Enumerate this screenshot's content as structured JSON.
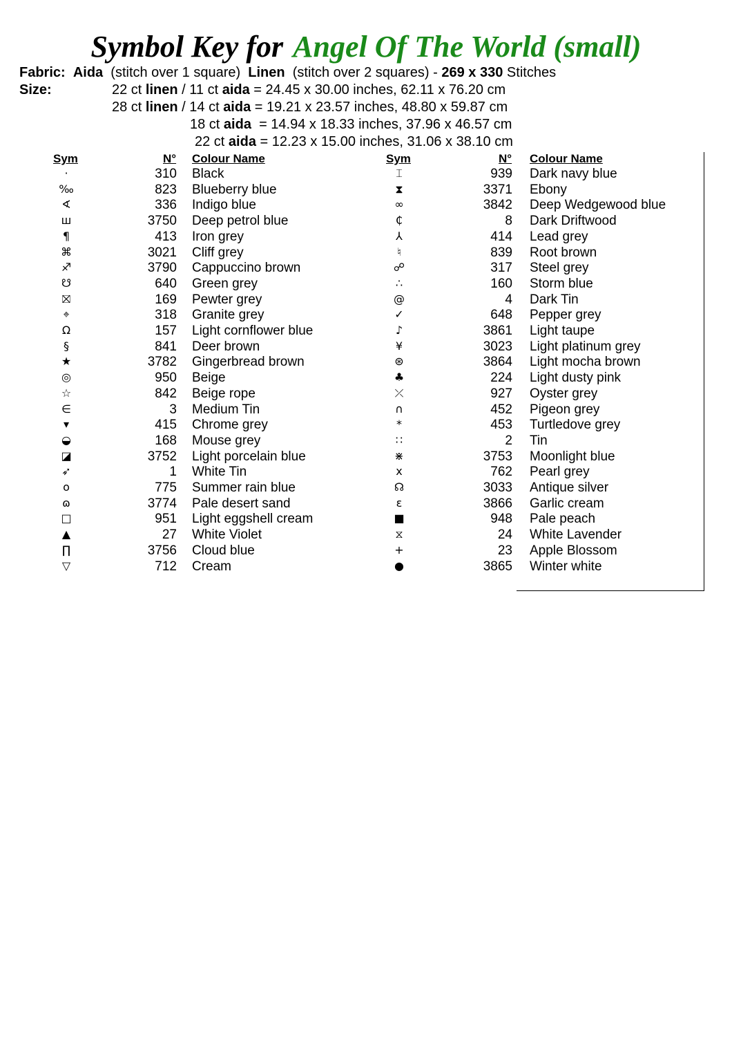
{
  "title": {
    "prefix": "Symbol Key for",
    "pattern": "Angel Of The World (small)",
    "accent": "#1a8a1a"
  },
  "fabric": {
    "label": "Fabric:",
    "aida": "Aida",
    "aida_note": "(stitch over 1 square)",
    "linen": "Linen",
    "linen_note": "(stitch over 2 squares) -",
    "stitches": "269 x 330",
    "stitches_unit": "Stitches"
  },
  "size": {
    "label": "Size:",
    "lines": [
      {
        "pre": "22 ct ",
        "b1": "linen",
        "mid": " / 11 ct ",
        "b2": "aida",
        "post": " = 24.45 x 30.00 inches, 62.11 x 76.20 cm"
      },
      {
        "pre": "28 ct ",
        "b1": "linen",
        "mid": " / 14 ct ",
        "b2": "aida",
        "post": " = 19.21 x 23.57 inches, 48.80 x 59.87 cm"
      },
      {
        "pre": "18 ct ",
        "b1": "",
        "mid": "",
        "b2": "aida",
        "post": "  = 14.94 x 18.33 inches, 37.96 x 46.57 cm"
      },
      {
        "pre": "22 ct ",
        "b1": "",
        "mid": "",
        "b2": "aida",
        "post": " = 12.23 x 15.00 inches, 31.06 x 38.10 cm"
      }
    ]
  },
  "headers": {
    "sym": "Sym",
    "num": "N°",
    "name": "Colour Name"
  },
  "left": [
    [
      "·",
      "310",
      "Black"
    ],
    [
      "‰",
      "823",
      "Blueberry blue"
    ],
    [
      "∢",
      "336",
      "Indigo blue"
    ],
    [
      "ш",
      "3750",
      "Deep petrol blue"
    ],
    [
      "¶",
      "413",
      "Iron grey"
    ],
    [
      "⌘",
      "3021",
      "Cliff grey"
    ],
    [
      "♐",
      "3790",
      "Cappuccino brown"
    ],
    [
      "☋",
      "640",
      "Green grey"
    ],
    [
      "⛝",
      "169",
      "Pewter grey"
    ],
    [
      "⌖",
      "318",
      "Granite grey"
    ],
    [
      "Ω",
      "157",
      "Light cornflower blue"
    ],
    [
      "§",
      "841",
      "Deer brown"
    ],
    [
      "★",
      "3782",
      "Gingerbread brown"
    ],
    [
      "◎",
      "950",
      "Beige"
    ],
    [
      "☆",
      "842",
      "Beige rope"
    ],
    [
      "∈",
      "3",
      "Medium Tin"
    ],
    [
      "▾",
      "415",
      "Chrome grey"
    ],
    [
      "◒",
      "168",
      "Mouse grey"
    ],
    [
      "◪",
      "3752",
      "Light porcelain blue"
    ],
    [
      "➶",
      "1",
      "White Tin"
    ],
    [
      "o",
      "775",
      "Summer rain blue"
    ],
    [
      "ɷ",
      "3774",
      "Pale desert sand"
    ],
    [
      "□",
      "951",
      "Light eggshell cream"
    ],
    [
      "▲",
      "27",
      "White Violet"
    ],
    [
      "∏",
      "3756",
      "Cloud blue"
    ],
    [
      "▽",
      "712",
      "Cream"
    ]
  ],
  "right": [
    [
      "⌶",
      "939",
      "Dark navy blue"
    ],
    [
      "⧗",
      "3371",
      "Ebony"
    ],
    [
      "∞",
      "3842",
      "Deep Wedgewood blue"
    ],
    [
      "₵",
      "8",
      "Dark Driftwood"
    ],
    [
      "⅄",
      "414",
      "Lead grey"
    ],
    [
      "♮",
      "839",
      "Root brown"
    ],
    [
      "☍",
      "317",
      "Steel grey"
    ],
    [
      "∴",
      "160",
      "Storm blue"
    ],
    [
      "@",
      "4",
      "Dark Tin"
    ],
    [
      "✓",
      "648",
      "Pepper grey"
    ],
    [
      "♪",
      "3861",
      "Light taupe"
    ],
    [
      "¥",
      "3023",
      "Light platinum grey"
    ],
    [
      "⊛",
      "3864",
      "Light mocha brown"
    ],
    [
      "♣",
      "224",
      "Light dusty pink"
    ],
    [
      "⤫",
      "927",
      "Oyster grey"
    ],
    [
      "∩",
      "452",
      "Pigeon grey"
    ],
    [
      "*",
      "453",
      "Turtledove grey"
    ],
    [
      "∷",
      "2",
      "Tin"
    ],
    [
      "⋇",
      "3753",
      "Moonlight blue"
    ],
    [
      "x",
      "762",
      "Pearl grey"
    ],
    [
      "☊",
      "3033",
      "Antique silver"
    ],
    [
      "ε",
      "3866",
      "Garlic cream"
    ],
    [
      "■",
      "948",
      "Pale peach"
    ],
    [
      "⧖",
      "24",
      "White Lavender"
    ],
    [
      "+",
      "23",
      "Apple Blossom"
    ],
    [
      "●",
      "3865",
      "Winter white"
    ]
  ]
}
